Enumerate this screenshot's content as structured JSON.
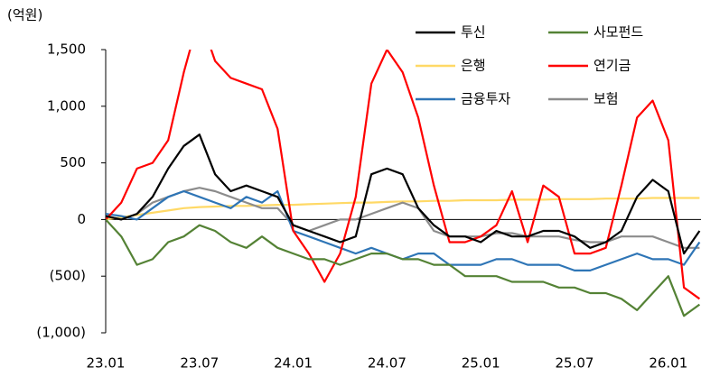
{
  "chart_data": {
    "type": "line",
    "unit_label": "(억원)",
    "categories": [
      "23.01",
      null,
      null,
      null,
      null,
      null,
      "23.07",
      null,
      null,
      null,
      null,
      null,
      "24.01",
      null,
      null,
      null,
      null,
      null,
      "24.07",
      null,
      null,
      null,
      null,
      null,
      "25.01",
      null,
      null,
      null,
      null,
      null,
      "25.07",
      null,
      null,
      null,
      null,
      null,
      "26.01",
      null,
      null
    ],
    "ylim": [
      -1000,
      1500
    ],
    "yticks": [
      {
        "value": -1000,
        "label": "(1,000)"
      },
      {
        "value": -500,
        "label": "(500)"
      },
      0,
      500,
      {
        "value": 1000,
        "label": "1,000"
      },
      {
        "value": 1500,
        "label": "1,500"
      }
    ],
    "series": [
      {
        "name": "투신",
        "color": "#000000",
        "values": [
          30,
          0,
          50,
          200,
          450,
          650,
          750,
          400,
          250,
          300,
          250,
          200,
          -50,
          -100,
          -150,
          -200,
          -150,
          400,
          450,
          400,
          100,
          -50,
          -150,
          -150,
          -200,
          -100,
          -150,
          -150,
          -100,
          -100,
          -150,
          -250,
          -200,
          -100,
          200,
          350,
          250,
          -300,
          -100
        ]
      },
      {
        "name": "사모펀드",
        "color": "#548235",
        "values": [
          0,
          -150,
          -400,
          -350,
          -200,
          -150,
          -50,
          -100,
          -200,
          -250,
          -150,
          -250,
          -300,
          -350,
          -350,
          -400,
          -350,
          -300,
          -300,
          -350,
          -350,
          -400,
          -400,
          -500,
          -500,
          -500,
          -550,
          -550,
          -550,
          -600,
          -600,
          -650,
          -650,
          -700,
          -800,
          -650,
          -500,
          -850,
          -750
        ]
      },
      {
        "name": "은행",
        "color": "#ffd966",
        "values": [
          0,
          20,
          40,
          60,
          80,
          100,
          110,
          115,
          120,
          120,
          125,
          130,
          130,
          135,
          140,
          145,
          150,
          150,
          155,
          160,
          160,
          165,
          165,
          170,
          170,
          170,
          175,
          175,
          175,
          180,
          180,
          180,
          185,
          185,
          185,
          190,
          190,
          190,
          190
        ]
      },
      {
        "name": "연기금",
        "color": "#ff0000",
        "values": [
          0,
          150,
          450,
          500,
          700,
          1300,
          1800,
          1400,
          1250,
          1200,
          1150,
          800,
          -100,
          -300,
          -550,
          -300,
          200,
          1200,
          1500,
          1300,
          900,
          300,
          -200,
          -200,
          -150,
          -50,
          250,
          -200,
          300,
          200,
          -300,
          -300,
          -250,
          300,
          900,
          1050,
          700,
          -600,
          -700
        ]
      },
      {
        "name": "금융투자",
        "color": "#2e75b6",
        "values": [
          50,
          30,
          0,
          100,
          200,
          250,
          200,
          150,
          100,
          200,
          150,
          250,
          -100,
          -150,
          -200,
          -250,
          -300,
          -250,
          -300,
          -350,
          -300,
          -300,
          -400,
          -400,
          -400,
          -350,
          -350,
          -400,
          -400,
          -400,
          -450,
          -450,
          -400,
          -350,
          -300,
          -350,
          -350,
          -400,
          -200
        ]
      },
      {
        "name": "보험",
        "color": "#8c8c8c",
        "values": [
          30,
          0,
          50,
          150,
          200,
          250,
          280,
          250,
          200,
          150,
          100,
          100,
          -50,
          -100,
          -50,
          0,
          0,
          50,
          100,
          150,
          100,
          -100,
          -150,
          -150,
          -150,
          -120,
          -120,
          -150,
          -150,
          -150,
          -180,
          -200,
          -200,
          -150,
          -150,
          -150,
          -200,
          -250,
          -250
        ]
      }
    ]
  }
}
